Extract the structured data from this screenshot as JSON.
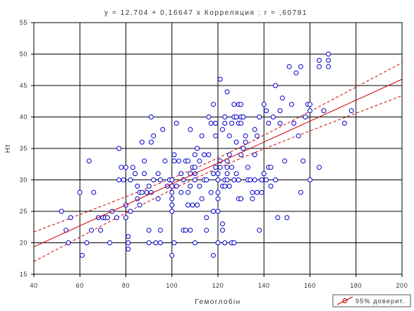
{
  "chart_data": {
    "type": "scatter",
    "title": "y = 12,704 + 0,16647 x   Корреляция : r = ,60781",
    "xlabel": "Гемоглобін",
    "ylabel": "Ht",
    "xlim": [
      40,
      200
    ],
    "ylim": [
      15,
      55
    ],
    "xticks": [
      "40",
      "60",
      "80",
      "100",
      "120",
      "140",
      "160",
      "180",
      "200"
    ],
    "yticks": [
      "15",
      "20",
      "25",
      "30",
      "35",
      "40",
      "45",
      "50",
      "55"
    ],
    "grid": true,
    "legend_position": "bottom-right",
    "legend_label": "95% доверит.",
    "regression": {
      "intercept": 12.704,
      "slope": 0.16647
    },
    "colors": {
      "points": "#0000cc",
      "regression": "#cc0000",
      "grid": "#000000"
    },
    "points": [
      [
        52,
        25
      ],
      [
        54,
        22
      ],
      [
        55,
        20
      ],
      [
        56,
        24
      ],
      [
        60,
        28
      ],
      [
        61,
        18
      ],
      [
        63,
        20
      ],
      [
        64,
        33
      ],
      [
        65,
        22
      ],
      [
        66,
        28
      ],
      [
        68,
        24
      ],
      [
        69,
        22
      ],
      [
        70,
        24
      ],
      [
        71,
        24
      ],
      [
        72,
        24
      ],
      [
        73,
        20
      ],
      [
        74,
        25
      ],
      [
        76,
        24
      ],
      [
        77,
        30
      ],
      [
        77,
        35
      ],
      [
        78,
        32
      ],
      [
        79,
        30
      ],
      [
        80,
        32
      ],
      [
        80,
        26
      ],
      [
        80,
        24
      ],
      [
        81,
        19
      ],
      [
        81,
        20
      ],
      [
        81,
        21
      ],
      [
        82,
        30
      ],
      [
        82,
        25
      ],
      [
        83,
        32
      ],
      [
        84,
        31
      ],
      [
        85,
        29
      ],
      [
        85,
        27
      ],
      [
        86,
        26
      ],
      [
        86,
        28
      ],
      [
        87,
        36
      ],
      [
        87,
        28
      ],
      [
        88,
        31
      ],
      [
        88,
        33
      ],
      [
        89,
        28
      ],
      [
        90,
        22
      ],
      [
        90,
        29
      ],
      [
        90,
        20
      ],
      [
        91,
        36
      ],
      [
        91,
        28
      ],
      [
        91,
        40
      ],
      [
        92,
        30
      ],
      [
        92,
        37
      ],
      [
        93,
        20
      ],
      [
        94,
        27
      ],
      [
        94,
        31
      ],
      [
        95,
        30
      ],
      [
        95,
        22
      ],
      [
        95,
        20
      ],
      [
        96,
        38
      ],
      [
        97,
        33
      ],
      [
        98,
        29
      ],
      [
        99,
        30
      ],
      [
        100,
        25
      ],
      [
        100,
        26
      ],
      [
        100,
        27
      ],
      [
        100,
        28
      ],
      [
        100,
        29
      ],
      [
        100,
        30
      ],
      [
        100,
        18
      ],
      [
        101,
        33
      ],
      [
        101,
        34
      ],
      [
        101,
        20
      ],
      [
        102,
        29
      ],
      [
        102,
        39
      ],
      [
        103,
        33
      ],
      [
        104,
        31
      ],
      [
        104,
        28
      ],
      [
        105,
        30
      ],
      [
        105,
        22
      ],
      [
        106,
        33
      ],
      [
        106,
        22
      ],
      [
        107,
        33
      ],
      [
        107,
        26
      ],
      [
        107,
        28
      ],
      [
        108,
        29
      ],
      [
        108,
        31
      ],
      [
        108,
        38
      ],
      [
        108,
        22
      ],
      [
        109,
        32
      ],
      [
        109,
        26
      ],
      [
        110,
        20
      ],
      [
        110,
        30
      ],
      [
        110,
        31
      ],
      [
        110,
        32
      ],
      [
        110,
        34
      ],
      [
        111,
        35
      ],
      [
        111,
        26
      ],
      [
        112,
        29
      ],
      [
        112,
        33
      ],
      [
        113,
        27
      ],
      [
        113,
        37
      ],
      [
        114,
        34
      ],
      [
        114,
        30
      ],
      [
        115,
        24
      ],
      [
        115,
        30
      ],
      [
        115,
        22
      ],
      [
        116,
        40
      ],
      [
        116,
        34
      ],
      [
        117,
        28
      ],
      [
        117,
        39
      ],
      [
        118,
        42
      ],
      [
        118,
        31
      ],
      [
        118,
        25
      ],
      [
        118,
        18
      ],
      [
        119,
        37
      ],
      [
        119,
        32
      ],
      [
        119,
        39
      ],
      [
        120,
        30
      ],
      [
        120,
        27
      ],
      [
        120,
        25
      ],
      [
        120,
        31
      ],
      [
        120,
        28
      ],
      [
        120,
        20
      ],
      [
        121,
        46
      ],
      [
        121,
        33
      ],
      [
        121,
        32
      ],
      [
        122,
        38
      ],
      [
        122,
        29
      ],
      [
        122,
        23
      ],
      [
        122,
        22
      ],
      [
        123,
        30
      ],
      [
        123,
        29
      ],
      [
        123,
        20
      ],
      [
        123,
        39
      ],
      [
        123,
        40
      ],
      [
        124,
        44
      ],
      [
        124,
        32
      ],
      [
        124,
        33
      ],
      [
        124,
        31
      ],
      [
        124,
        30
      ],
      [
        125,
        37
      ],
      [
        125,
        29
      ],
      [
        125,
        34
      ],
      [
        126,
        32
      ],
      [
        126,
        20
      ],
      [
        126,
        39
      ],
      [
        127,
        40
      ],
      [
        127,
        42
      ],
      [
        127,
        30
      ],
      [
        127,
        20
      ],
      [
        128,
        40
      ],
      [
        128,
        36
      ],
      [
        128,
        31
      ],
      [
        129,
        30
      ],
      [
        129,
        27
      ],
      [
        129,
        39
      ],
      [
        129,
        42
      ],
      [
        130,
        42
      ],
      [
        130,
        39
      ],
      [
        130,
        34
      ],
      [
        130,
        27
      ],
      [
        130,
        40
      ],
      [
        131,
        40
      ],
      [
        131,
        35
      ],
      [
        132,
        36
      ],
      [
        132,
        37
      ],
      [
        133,
        32
      ],
      [
        133,
        30
      ],
      [
        134,
        30
      ],
      [
        135,
        28
      ],
      [
        135,
        27
      ],
      [
        136,
        38
      ],
      [
        136,
        34
      ],
      [
        136,
        30
      ],
      [
        137,
        37
      ],
      [
        137,
        28
      ],
      [
        138,
        22
      ],
      [
        138,
        40
      ],
      [
        139,
        30
      ],
      [
        139,
        28
      ],
      [
        140,
        42
      ],
      [
        140,
        31
      ],
      [
        141,
        41
      ],
      [
        141,
        30
      ],
      [
        142,
        32
      ],
      [
        142,
        39
      ],
      [
        143,
        32
      ],
      [
        143,
        29
      ],
      [
        144,
        40
      ],
      [
        145,
        45
      ],
      [
        145,
        30
      ],
      [
        146,
        24
      ],
      [
        147,
        39
      ],
      [
        147,
        41
      ],
      [
        148,
        43
      ],
      [
        149,
        33
      ],
      [
        150,
        24
      ],
      [
        151,
        48
      ],
      [
        152,
        42
      ],
      [
        153,
        39
      ],
      [
        154,
        47
      ],
      [
        155,
        37
      ],
      [
        156,
        48
      ],
      [
        156,
        28
      ],
      [
        157,
        33
      ],
      [
        158,
        40
      ],
      [
        159,
        42
      ],
      [
        160,
        42
      ],
      [
        160,
        41
      ],
      [
        160,
        30
      ],
      [
        164,
        48
      ],
      [
        164,
        49
      ],
      [
        164,
        32
      ],
      [
        166,
        41
      ],
      [
        168,
        48
      ],
      [
        168,
        49
      ],
      [
        168,
        50
      ],
      [
        175,
        39
      ],
      [
        178,
        41
      ]
    ]
  }
}
